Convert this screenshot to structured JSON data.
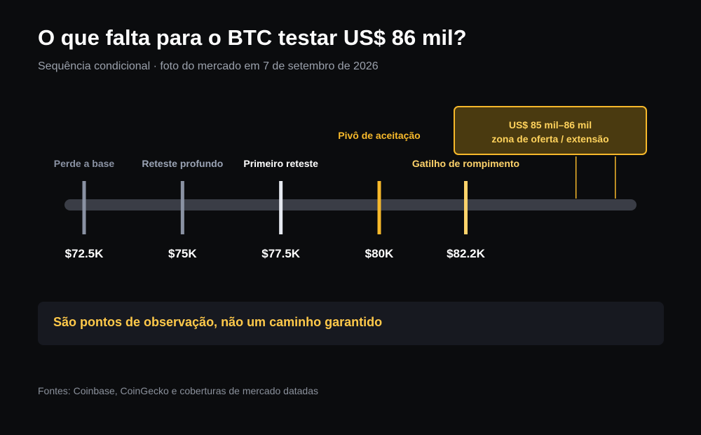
{
  "header": {
    "title": "O que falta para o BTC testar US$ 86 mil?",
    "subtitle": "Sequência condicional · foto do mercado em 7 de setembro de 2026"
  },
  "callout": {
    "line1": "US$ 85 mil–86 mil",
    "line2": "zona de oferta / extensão"
  },
  "note": "São pontos de observação, não um caminho garantido",
  "source": "Fontes: Coinbase, CoinGecko e coberturas de mercado datadas",
  "colors": {
    "background": "#0b0c0e",
    "track": "#3a3d46",
    "gray_level": "#8a92a3",
    "light_level": "#e6e9f0",
    "gold_level": "#f7b92b",
    "light_gold_level": "#ffd36b"
  },
  "chart_data": {
    "type": "timeline",
    "unit": "USD",
    "xlim": [
      72000,
      86300
    ],
    "levels": [
      {
        "label": "Perde a base",
        "value": 72500,
        "value_label": "$72.5K",
        "color": "#8a92a3",
        "label_color": "#8a92a3"
      },
      {
        "label": "Reteste profundo",
        "value": 75000,
        "value_label": "$75K",
        "color": "#8a92a3",
        "label_color": "#9aa3b4"
      },
      {
        "label": "Primeiro reteste",
        "value": 77500,
        "value_label": "$77.5K",
        "color": "#e6e9f0",
        "label_color": "#ffffff"
      },
      {
        "label": "Pivô de aceitação",
        "value": 80000,
        "value_label": "$80K",
        "color": "#f7b92b",
        "label_color": "#f7b92b"
      },
      {
        "label": "Gatilho de rompimento",
        "value": 82200,
        "value_label": "$82.2K",
        "color": "#ffd36b",
        "label_color": "#ffd36b"
      }
    ],
    "zone": {
      "from": 85000,
      "to": 86000,
      "label": "US$ 85 mil–86 mil zona de oferta / extensão"
    }
  }
}
